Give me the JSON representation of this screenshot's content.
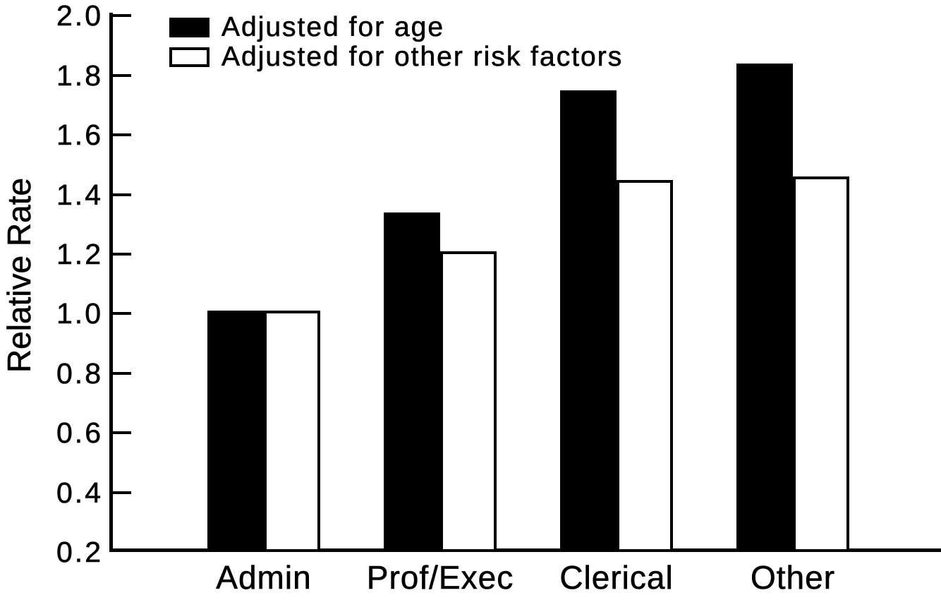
{
  "chart_data": {
    "type": "bar",
    "title": "",
    "xlabel": "",
    "ylabel": "Relative Rate",
    "categories": [
      "Admin",
      "Prof/Exec",
      "Clerical",
      "Other"
    ],
    "series": [
      {
        "name": "Adjusted for age",
        "style": "filled-black",
        "values": [
          1.01,
          1.34,
          1.75,
          1.84
        ]
      },
      {
        "name": "Adjusted for other risk factors",
        "style": "white-outlined",
        "values": [
          1.01,
          1.21,
          1.45,
          1.46
        ]
      }
    ],
    "ylim": [
      0.2,
      2.0
    ],
    "ytick_step": 0.2,
    "ytick_labels": [
      "0.2",
      "0.4",
      "0.6",
      "0.8",
      "1.0",
      "1.2",
      "1.4",
      "1.6",
      "1.8",
      "2.0"
    ],
    "legend_position": "top-left",
    "grid": false,
    "colors": {
      "series_1_fill": "#000000",
      "series_2_fill": "#ffffff",
      "axis": "#000000",
      "background": "#ffffff"
    }
  }
}
